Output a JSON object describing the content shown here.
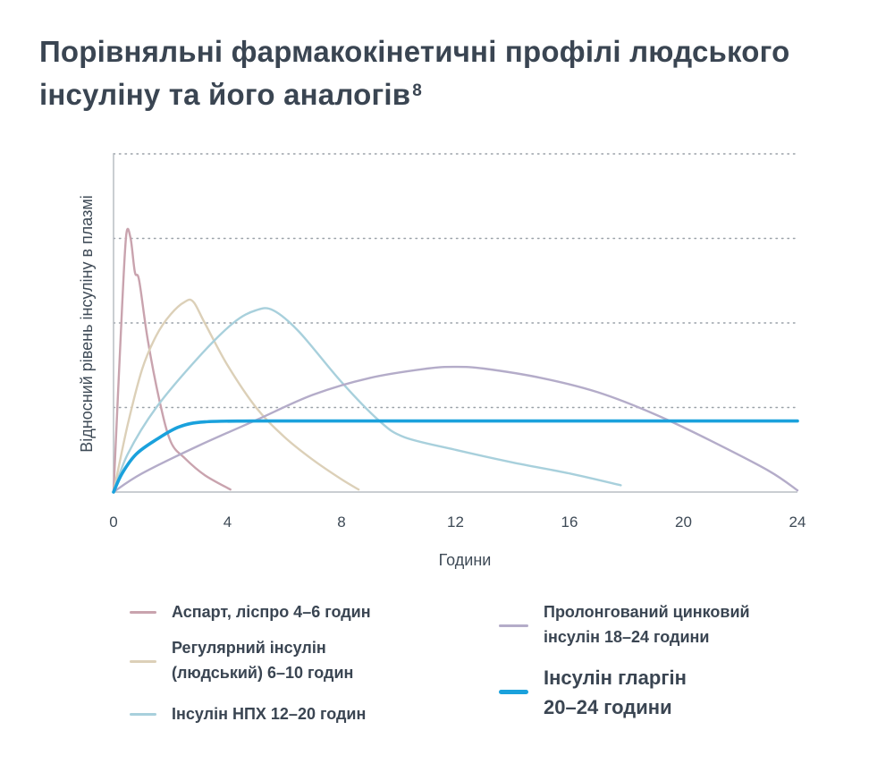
{
  "title_text": "Порівняльні фармакокінетичні профілі людського інсуліну та його аналогів",
  "title_footnote": "8",
  "chart_data": {
    "type": "line",
    "xlabel": "Години",
    "ylabel": "Відносний рівень інсуліну в плазмі",
    "xlim": [
      0,
      24
    ],
    "ylim": [
      0,
      4
    ],
    "x_ticks": [
      0,
      4,
      8,
      12,
      16,
      20,
      24
    ],
    "grid": "horizontal-dotted",
    "legend_position": "bottom",
    "series": [
      {
        "name": "Аспарт, ліспро 4–6 годин",
        "color": "#c9a3ae",
        "points": [
          [
            0,
            0
          ],
          [
            0.3,
            2.2
          ],
          [
            0.45,
            3.05
          ],
          [
            0.6,
            3.0
          ],
          [
            0.75,
            2.6
          ],
          [
            0.9,
            2.5
          ],
          [
            1.2,
            1.8
          ],
          [
            1.6,
            1.1
          ],
          [
            2.0,
            0.6
          ],
          [
            2.5,
            0.4
          ],
          [
            3.2,
            0.2
          ],
          [
            4.1,
            0.03
          ]
        ]
      },
      {
        "name": "Регулярний інсулін (людський) 6–10 годин",
        "color": "#dcd0b8",
        "points": [
          [
            0,
            0
          ],
          [
            0.5,
            0.8
          ],
          [
            1.0,
            1.45
          ],
          [
            1.5,
            1.85
          ],
          [
            2.0,
            2.1
          ],
          [
            2.5,
            2.25
          ],
          [
            2.8,
            2.25
          ],
          [
            3.2,
            2.0
          ],
          [
            4.0,
            1.5
          ],
          [
            5.0,
            1.0
          ],
          [
            6.0,
            0.65
          ],
          [
            7.0,
            0.38
          ],
          [
            8.0,
            0.15
          ],
          [
            8.6,
            0.03
          ]
        ]
      },
      {
        "name": "Інсулін НПХ 12–20 годин",
        "color": "#a8d0dc",
        "points": [
          [
            0,
            0
          ],
          [
            0.5,
            0.45
          ],
          [
            1.5,
            1.0
          ],
          [
            3.0,
            1.6
          ],
          [
            4.2,
            2.0
          ],
          [
            5.0,
            2.15
          ],
          [
            5.6,
            2.15
          ],
          [
            6.5,
            1.9
          ],
          [
            8.0,
            1.3
          ],
          [
            9.3,
            0.85
          ],
          [
            10.2,
            0.65
          ],
          [
            12.0,
            0.5
          ],
          [
            14.0,
            0.35
          ],
          [
            16.0,
            0.22
          ],
          [
            17.8,
            0.08
          ]
        ]
      },
      {
        "name": "Пролонгований цинковий інсулін 18–24 години",
        "color": "#b4acc9",
        "points": [
          [
            0,
            0
          ],
          [
            1.0,
            0.22
          ],
          [
            3.0,
            0.55
          ],
          [
            5.0,
            0.85
          ],
          [
            7.0,
            1.15
          ],
          [
            9.0,
            1.35
          ],
          [
            11.0,
            1.46
          ],
          [
            12.0,
            1.48
          ],
          [
            13.0,
            1.46
          ],
          [
            15.0,
            1.35
          ],
          [
            17.0,
            1.18
          ],
          [
            19.0,
            0.92
          ],
          [
            21.0,
            0.6
          ],
          [
            23.0,
            0.25
          ],
          [
            24.0,
            0.02
          ]
        ]
      },
      {
        "name": "Інсулін гларгін 20–24 години",
        "color": "#1aa1dc",
        "points": [
          [
            0,
            0
          ],
          [
            0.3,
            0.22
          ],
          [
            0.8,
            0.45
          ],
          [
            1.5,
            0.62
          ],
          [
            2.3,
            0.77
          ],
          [
            3.2,
            0.83
          ],
          [
            5.0,
            0.84
          ],
          [
            10.0,
            0.84
          ],
          [
            16.0,
            0.84
          ],
          [
            20.0,
            0.84
          ],
          [
            24.0,
            0.84
          ]
        ]
      }
    ]
  }
}
